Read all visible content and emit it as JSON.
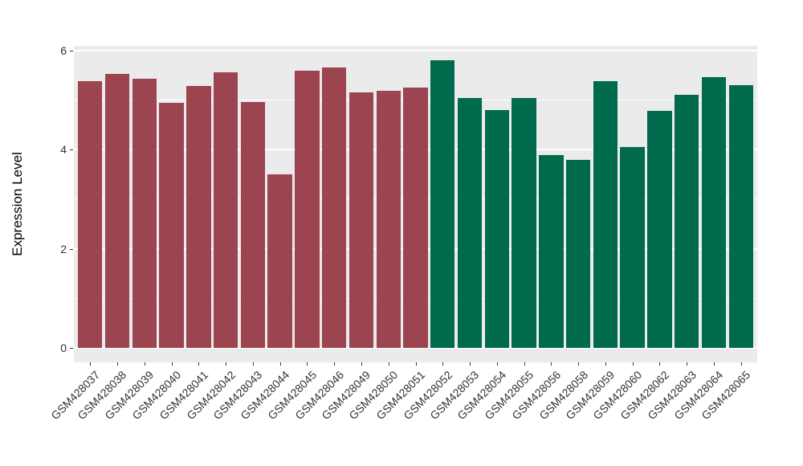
{
  "chart_data": {
    "type": "bar",
    "title": "",
    "xlabel": "",
    "ylabel": "Expression Level",
    "ylim": [
      0,
      6.09
    ],
    "yticks": [
      0,
      2,
      4,
      6
    ],
    "yticks_minor": [
      1,
      3,
      5
    ],
    "grid": "on",
    "legend_position": "none",
    "panel_background": "#EBEBEB",
    "grid_color": "#FFFFFF",
    "axis_text_color": "#333333",
    "group_colors": {
      "group1": "#9C4450",
      "group2": "#006B4C"
    },
    "samples": [
      {
        "label": "GSM428037",
        "value": 5.38,
        "group": "group1"
      },
      {
        "label": "GSM428038",
        "value": 5.53,
        "group": "group1"
      },
      {
        "label": "GSM428039",
        "value": 5.44,
        "group": "group1"
      },
      {
        "label": "GSM428040",
        "value": 4.95,
        "group": "group1"
      },
      {
        "label": "GSM428041",
        "value": 5.28,
        "group": "group1"
      },
      {
        "label": "GSM428042",
        "value": 5.56,
        "group": "group1"
      },
      {
        "label": "GSM428043",
        "value": 4.96,
        "group": "group1"
      },
      {
        "label": "GSM428044",
        "value": 3.5,
        "group": "group1"
      },
      {
        "label": "GSM428045",
        "value": 5.6,
        "group": "group1"
      },
      {
        "label": "GSM428046",
        "value": 5.66,
        "group": "group1"
      },
      {
        "label": "GSM428049",
        "value": 5.16,
        "group": "group1"
      },
      {
        "label": "GSM428050",
        "value": 5.19,
        "group": "group1"
      },
      {
        "label": "GSM428051",
        "value": 5.25,
        "group": "group1"
      },
      {
        "label": "GSM428052",
        "value": 5.8,
        "group": "group2"
      },
      {
        "label": "GSM428053",
        "value": 5.04,
        "group": "group2"
      },
      {
        "label": "GSM428054",
        "value": 4.8,
        "group": "group2"
      },
      {
        "label": "GSM428055",
        "value": 5.04,
        "group": "group2"
      },
      {
        "label": "GSM428056",
        "value": 3.89,
        "group": "group2"
      },
      {
        "label": "GSM428058",
        "value": 3.79,
        "group": "group2"
      },
      {
        "label": "GSM428059",
        "value": 5.38,
        "group": "group2"
      },
      {
        "label": "GSM428060",
        "value": 4.05,
        "group": "group2"
      },
      {
        "label": "GSM428062",
        "value": 4.79,
        "group": "group2"
      },
      {
        "label": "GSM428063",
        "value": 5.11,
        "group": "group2"
      },
      {
        "label": "GSM428064",
        "value": 5.47,
        "group": "group2"
      },
      {
        "label": "GSM428065",
        "value": 5.31,
        "group": "group2"
      }
    ]
  }
}
